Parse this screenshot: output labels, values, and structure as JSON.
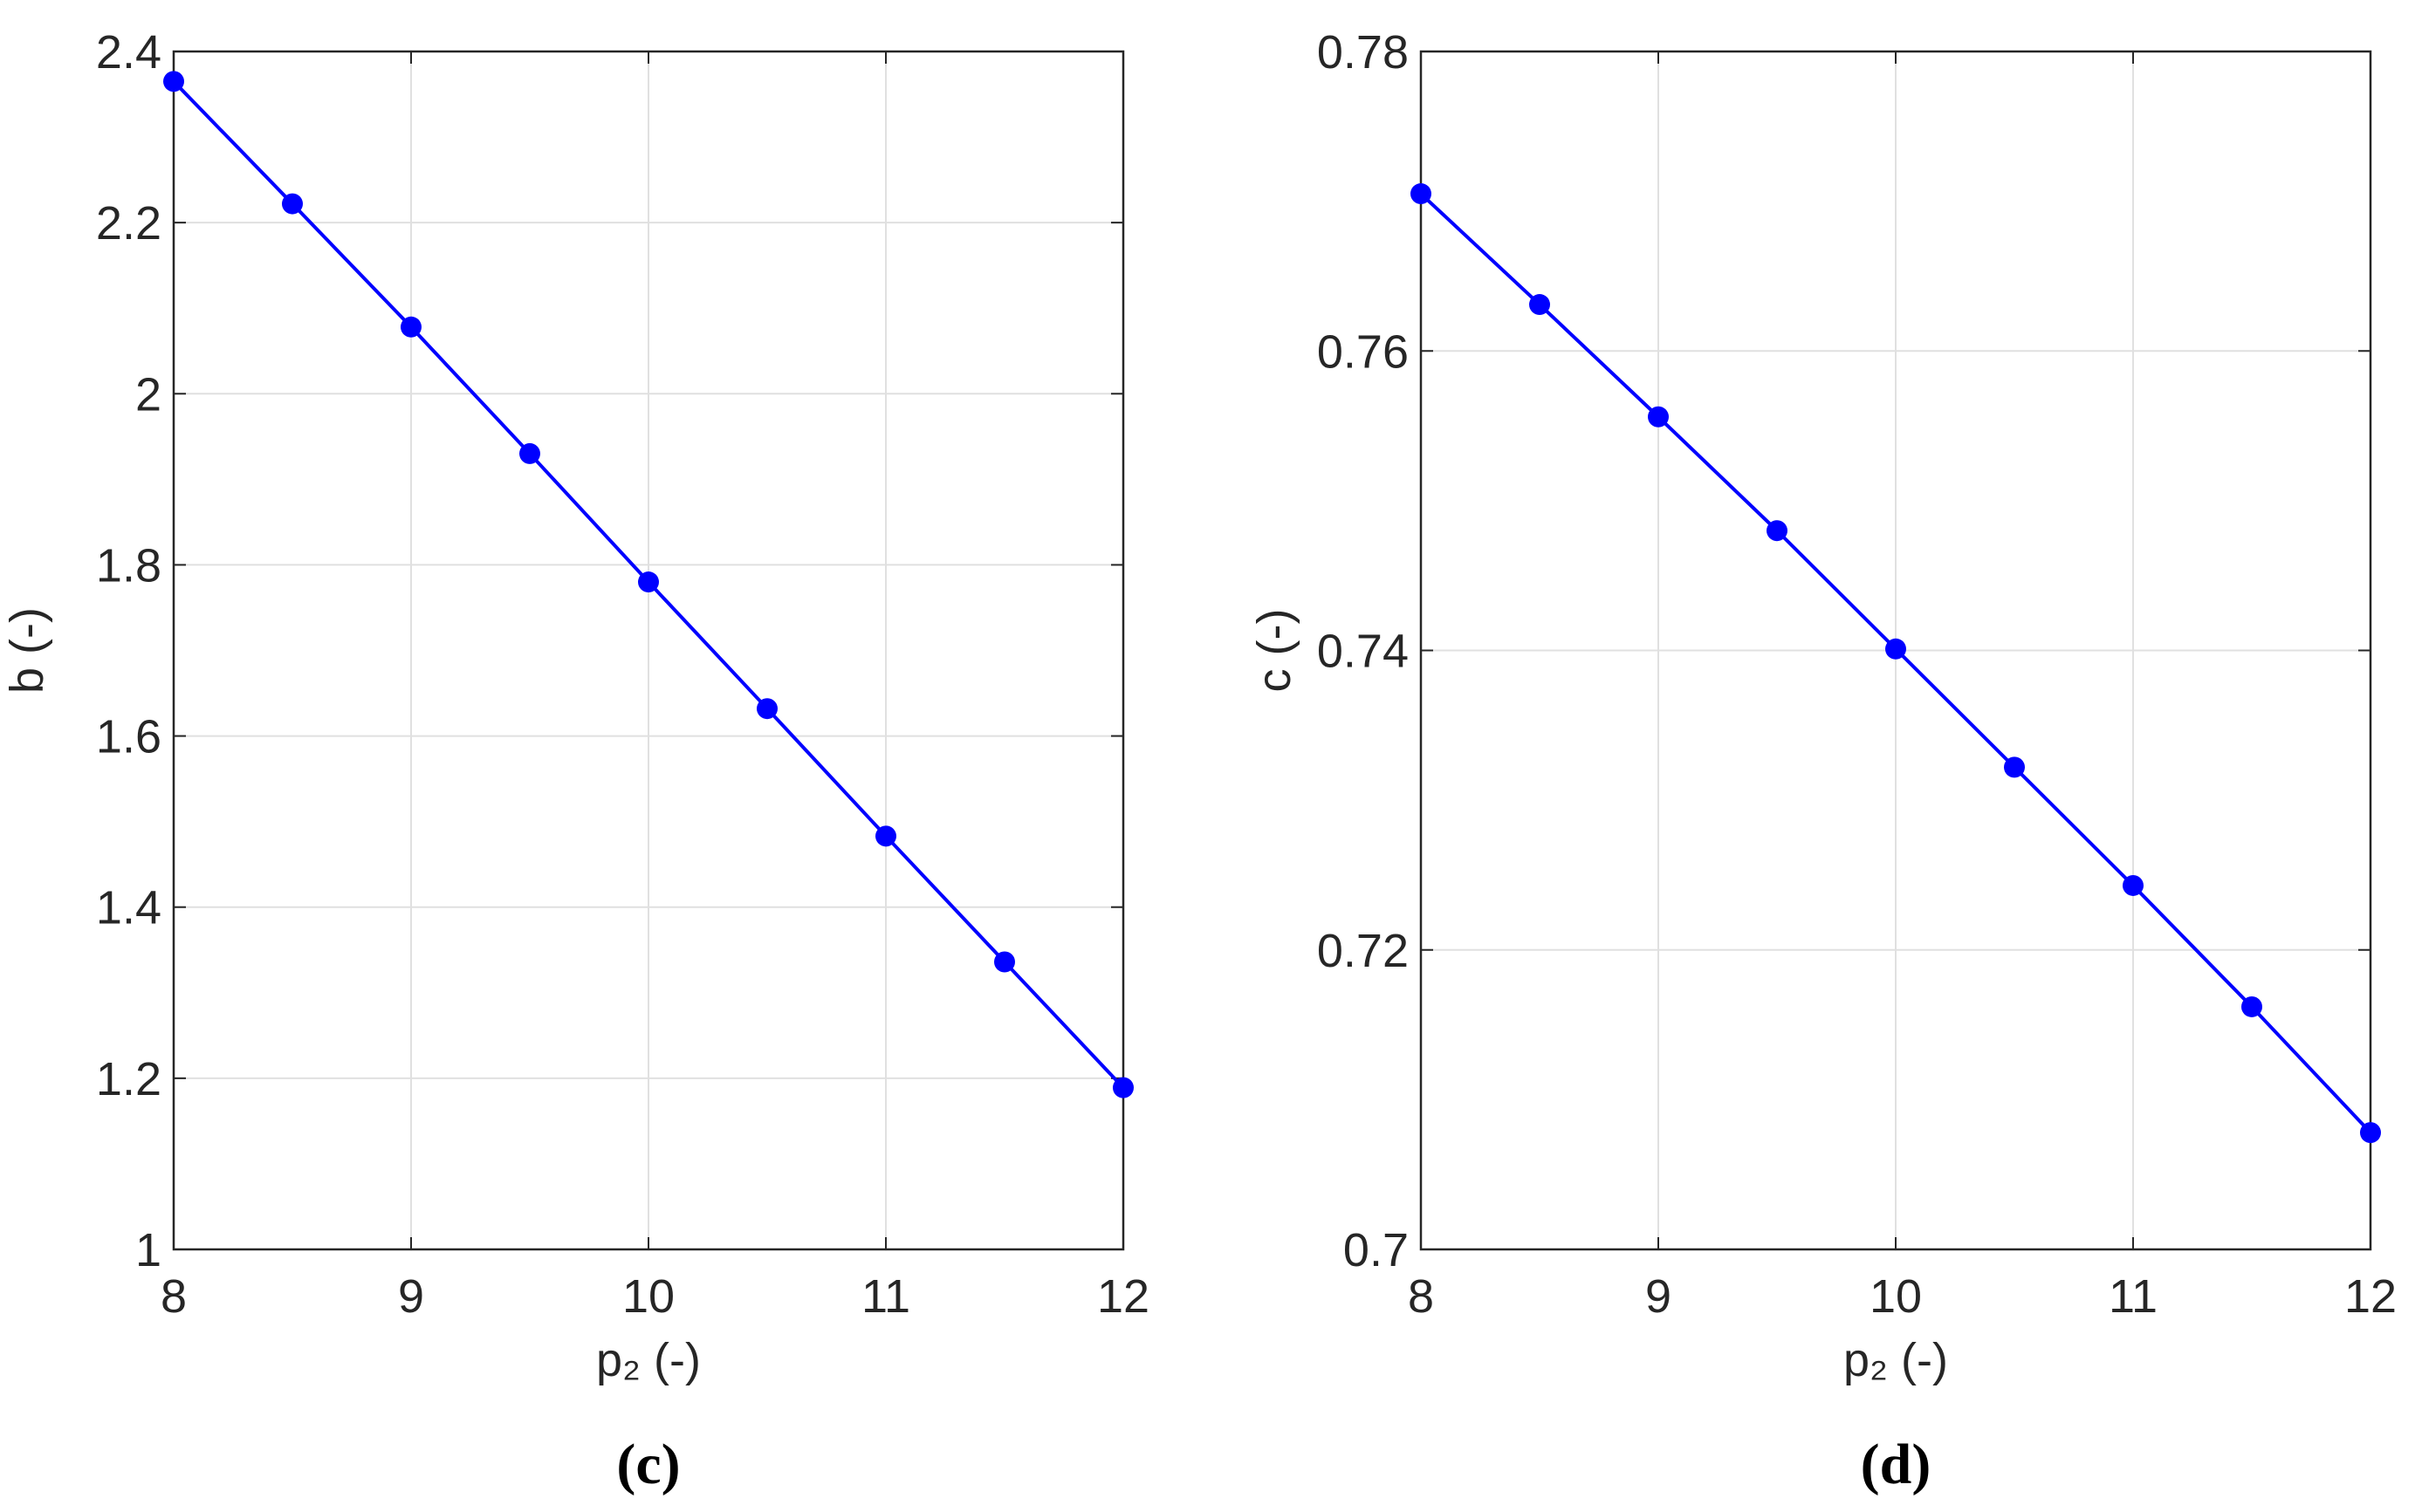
{
  "chart_data": [
    {
      "type": "line",
      "caption": "(c)",
      "xlabel": "p₂ (-)",
      "ylabel": "b (-)",
      "x": [
        8,
        8.5,
        9,
        9.5,
        10,
        10.5,
        11,
        11.5,
        12
      ],
      "series": [
        {
          "color": "#0000ff",
          "values": [
            2.365,
            2.222,
            2.078,
            1.93,
            1.78,
            1.632,
            1.483,
            1.336,
            1.189
          ]
        }
      ],
      "xlim": [
        8,
        12
      ],
      "xticks": [
        8,
        9,
        10,
        11,
        12
      ],
      "ylim": [
        1,
        2.4
      ],
      "yticks": [
        1,
        1.2,
        1.4,
        1.6,
        1.8,
        2,
        2.2,
        2.4
      ],
      "grid": true
    },
    {
      "type": "line",
      "caption": "(d)",
      "xlabel": "p₂ (-)",
      "ylabel": "c (-)",
      "x": [
        8,
        8.5,
        9,
        9.5,
        10,
        10.5,
        11,
        11.5,
        12
      ],
      "series": [
        {
          "color": "#0000ff",
          "values": [
            0.7705,
            0.7631,
            0.7556,
            0.748,
            0.7401,
            0.7322,
            0.7243,
            0.7162,
            0.7078
          ]
        }
      ],
      "xlim": [
        8,
        12
      ],
      "xticks": [
        8,
        9,
        10,
        11,
        12
      ],
      "ylim": [
        0.7,
        0.78
      ],
      "yticks": [
        0.7,
        0.72,
        0.74,
        0.76,
        0.78
      ],
      "grid": true
    }
  ]
}
